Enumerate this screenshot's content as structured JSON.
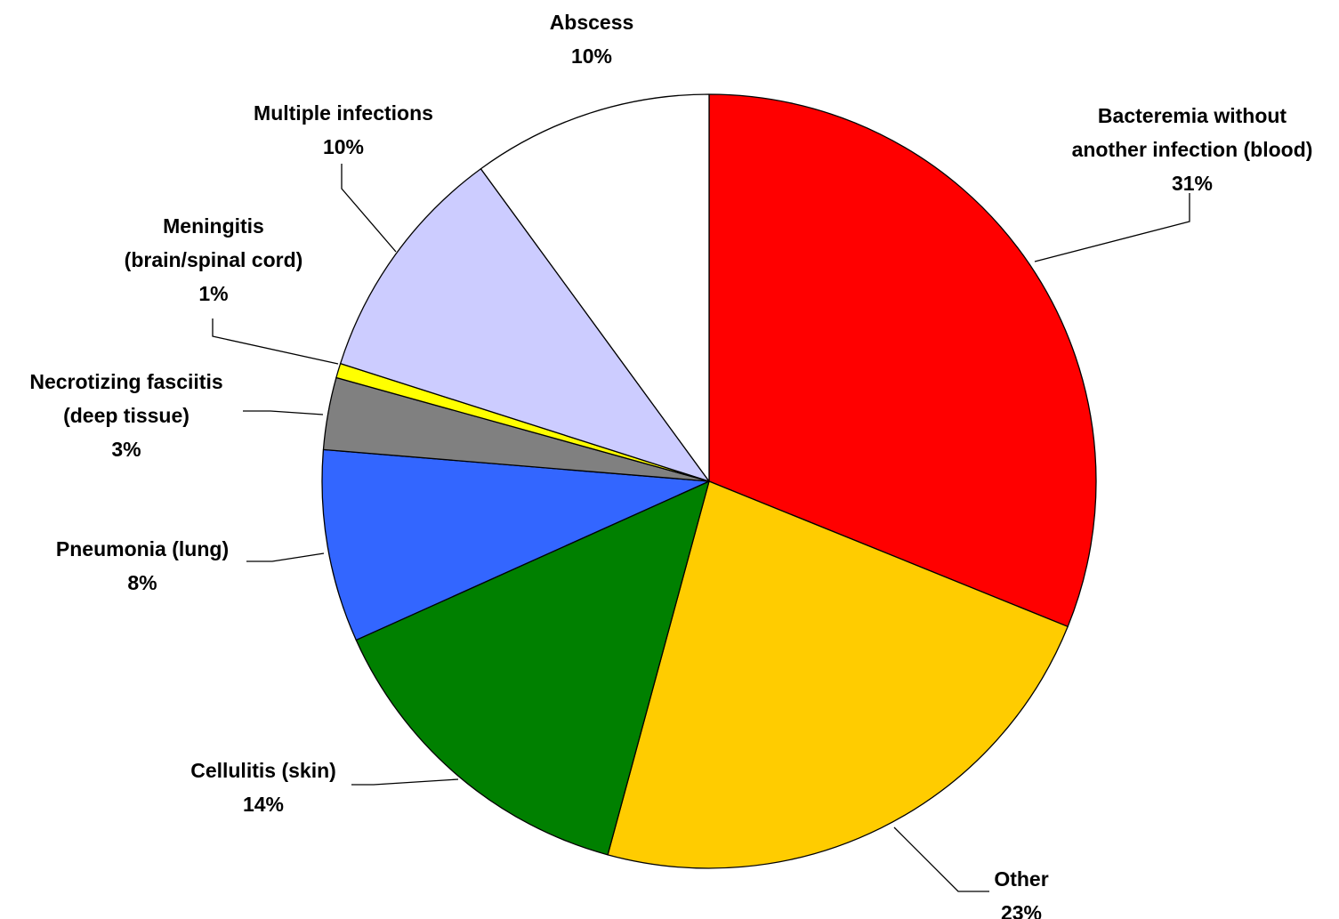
{
  "chart_data": {
    "type": "pie",
    "start_angle_deg": 0,
    "direction": "clockwise",
    "slices": [
      {
        "label_lines": [
          "Bacteremia without",
          "another infection (blood)"
        ],
        "value": 31,
        "value_label": "31%",
        "color": "#FF0000"
      },
      {
        "label_lines": [
          "Other"
        ],
        "value": 23,
        "value_label": "23%",
        "color": "#FFCC00"
      },
      {
        "label_lines": [
          "Cellulitis (skin)"
        ],
        "value": 14,
        "value_label": "14%",
        "color": "#008000"
      },
      {
        "label_lines": [
          "Pneumonia (lung)"
        ],
        "value": 8,
        "value_label": "8%",
        "color": "#3366FF"
      },
      {
        "label_lines": [
          "Necrotizing fasciitis",
          "(deep tissue)"
        ],
        "value": 3,
        "value_label": "3%",
        "color": "#808080"
      },
      {
        "label_lines": [
          "Meningitis",
          "(brain/spinal cord)"
        ],
        "value": 0.6,
        "value_label": "1%",
        "color": "#FFFF00"
      },
      {
        "label_lines": [
          "Multiple infections"
        ],
        "value": 10,
        "value_label": "10%",
        "color": "#CCCCFF"
      },
      {
        "label_lines": [
          "Abscess"
        ],
        "value": 10,
        "value_label": "10%",
        "color": "#FFFFFF"
      }
    ]
  }
}
